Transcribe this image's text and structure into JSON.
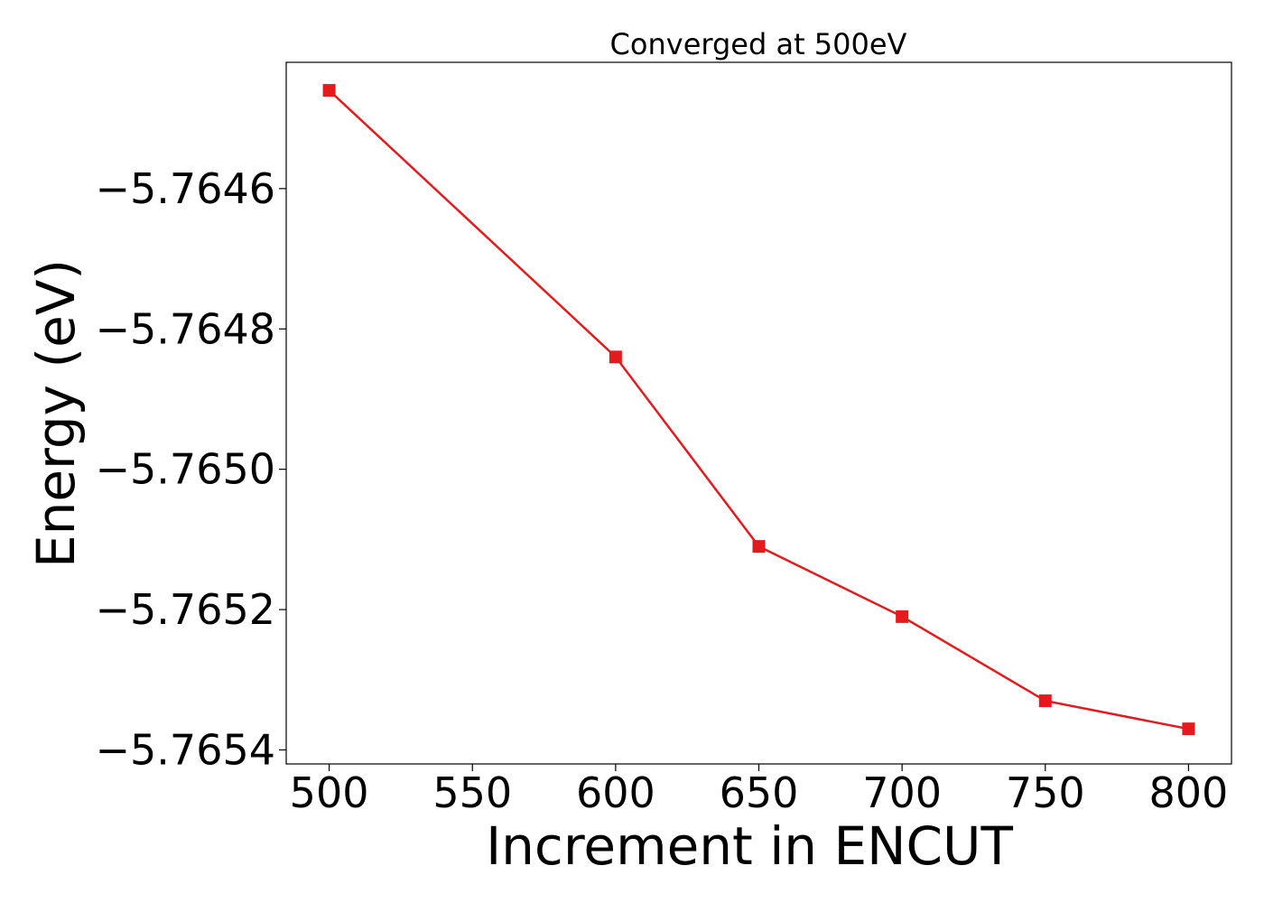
{
  "chart_data": {
    "type": "line",
    "title": "Converged at 500eV",
    "xlabel": "Increment in ENCUT",
    "ylabel": "Energy (eV)",
    "x": [
      500,
      600,
      650,
      700,
      750,
      800
    ],
    "series": [
      {
        "values": [
          -5.76446,
          -5.76484,
          -5.76511,
          -5.76521,
          -5.76533,
          -5.76537
        ],
        "color": "#e41a1c",
        "marker": "square"
      }
    ],
    "xlim": [
      485,
      815
    ],
    "ylim": [
      -5.76542,
      -5.76442
    ],
    "xticks": [
      500,
      550,
      600,
      650,
      700,
      750,
      800
    ],
    "xtick_labels": [
      "500",
      "550",
      "600",
      "650",
      "700",
      "750",
      "800"
    ],
    "yticks": [
      -5.7646,
      -5.7648,
      -5.765,
      -5.7652,
      -5.7654
    ],
    "ytick_labels": [
      "−5.7646",
      "−5.7648",
      "−5.7650",
      "−5.7652",
      "−5.7654"
    ],
    "grid": false,
    "legend": "none"
  }
}
